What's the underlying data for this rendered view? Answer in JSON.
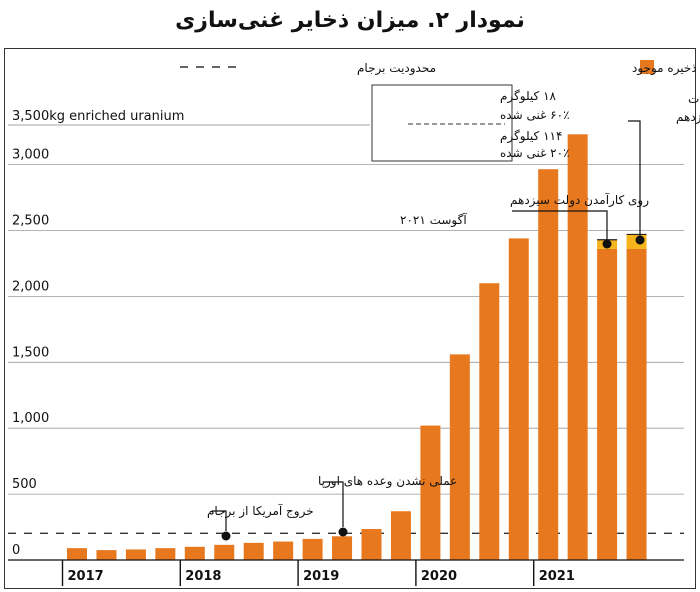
{
  "chart_data": {
    "type": "bar",
    "title": "نمودار ۲. میزان ذخایر غنی‌سازی",
    "ylabel": "3,500kg enriched uranium",
    "ylim": [
      0,
      3500
    ],
    "yticks": [
      {
        "value": 0,
        "label": "0"
      },
      {
        "value": 500,
        "label": "500"
      },
      {
        "value": 1000,
        "label": "1,000"
      },
      {
        "value": 1500,
        "label": "1,500"
      },
      {
        "value": 2000,
        "label": "2,000"
      },
      {
        "value": 2500,
        "label": "2,500"
      },
      {
        "value": 3000,
        "label": "3,000"
      }
    ],
    "years": [
      "2017",
      "2018",
      "2019",
      "2020",
      "2021"
    ],
    "values": [
      90,
      75,
      80,
      90,
      100,
      115,
      130,
      140,
      160,
      180,
      235,
      370,
      1020,
      1560,
      2100,
      2440,
      2965,
      3230,
      2360,
      2360
    ],
    "highlight": [
      {
        "index": 18,
        "value": 70
      },
      {
        "index": 19,
        "value": 110
      }
    ],
    "jcpoa_limit": 202.8,
    "colors": {
      "bar": "#e8781e",
      "highlight": "#f5b41c",
      "limit": "#333333"
    },
    "legend": {
      "stock_label": "ذخیره موجود",
      "limit_label": "محدودیت برجام"
    },
    "annotations": {
      "box_line1": "۱۸ کیلوگرم",
      "box_line2": "۶۰٪ غنی شده",
      "box_line3": "۱۱۴ کیلوگرم",
      "box_line4": "۲۰٪ غنی شده",
      "talks_line1": "زمان آغاز مذاکرات",
      "talks_line2": "در دولت سیزدهم",
      "gov_line1": "روی کارآمدن دولت سیزدهم",
      "gov_line2": "آگوست ۲۰۲۱",
      "europe": "عملی نشدن وعده های اورپا",
      "usexit": "خروج آمریکا از برجام"
    }
  }
}
